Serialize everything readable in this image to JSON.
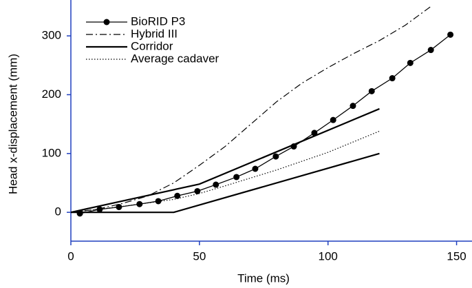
{
  "chart_data": {
    "type": "line",
    "x_label": "Time (ms)",
    "y_label": "Head x-displacement (mm)",
    "xlim": [
      0,
      156
    ],
    "ylim": [
      -49,
      361
    ],
    "xticks": [
      0,
      50,
      100,
      150
    ],
    "yticks": [
      0,
      100,
      200,
      300
    ],
    "axis_color": "#1f3fbf",
    "grid": false,
    "legend": "top-left",
    "series": [
      {
        "name": "BioRID P3",
        "color": "#000000",
        "style": "solid-marker",
        "x": [
          3.5,
          11.2,
          18.7,
          26.7,
          34,
          41.4,
          49.2,
          56.4,
          64.4,
          71.7,
          79.7,
          86.7,
          94.7,
          102,
          109.7,
          117,
          125,
          132,
          140,
          147.6
        ],
        "values": [
          -2,
          5,
          9,
          14,
          19,
          28,
          36,
          47,
          60,
          74,
          95,
          112,
          135,
          157,
          181,
          206,
          228,
          254,
          276,
          302
        ]
      },
      {
        "name": "Hybrid III",
        "color": "#000000",
        "style": "dashdot",
        "x": [
          0,
          10,
          20,
          30,
          40,
          50,
          60,
          70,
          80,
          90,
          100,
          110,
          120,
          130,
          140
        ],
        "values": [
          0,
          5,
          15,
          28,
          50,
          80,
          112,
          150,
          188,
          220,
          246,
          270,
          292,
          318,
          350
        ]
      },
      {
        "name": "Corridor",
        "color": "#000000",
        "style": "solid",
        "bounds": [
          {
            "x": [
              0,
              50,
              120
            ],
            "values": [
              0,
              48,
              176
            ]
          },
          {
            "x": [
              0,
              40,
              120
            ],
            "values": [
              0,
              0,
              100
            ]
          }
        ]
      },
      {
        "name": "Average cadaver",
        "color": "#000000",
        "style": "dotted",
        "x": [
          0,
          20,
          40,
          50,
          60,
          80,
          100,
          120
        ],
        "values": [
          0,
          10,
          22,
          32,
          45,
          72,
          102,
          138
        ]
      }
    ]
  }
}
